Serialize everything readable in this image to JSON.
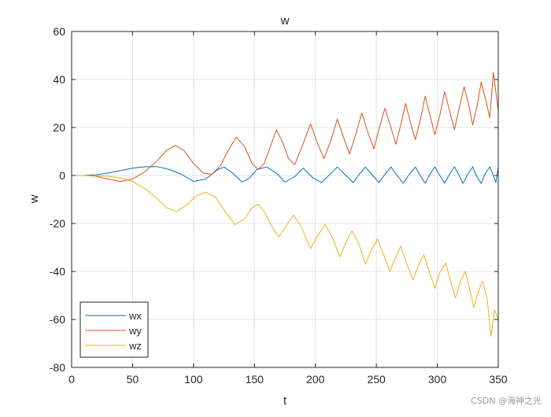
{
  "chart_data": {
    "type": "line",
    "title": "w",
    "xlabel": "t",
    "ylabel": "w",
    "xlim": [
      0,
      350
    ],
    "ylim": [
      -80,
      60
    ],
    "xticks": [
      0,
      50,
      100,
      150,
      200,
      250,
      300,
      350
    ],
    "yticks": [
      -80,
      -60,
      -40,
      -20,
      0,
      20,
      40,
      60
    ],
    "grid": true,
    "legend_position": "bottom-left",
    "series": [
      {
        "name": "wx",
        "color": "#0072BD",
        "points": [
          [
            0,
            0
          ],
          [
            10,
            0
          ],
          [
            20,
            0.3
          ],
          [
            30,
            1.0
          ],
          [
            40,
            2.0
          ],
          [
            50,
            3.0
          ],
          [
            60,
            3.6
          ],
          [
            70,
            3.7
          ],
          [
            80,
            2.5
          ],
          [
            90,
            0.5
          ],
          [
            100,
            -2.5
          ],
          [
            110,
            -1.5
          ],
          [
            120,
            2.5
          ],
          [
            125,
            3.5
          ],
          [
            132,
            1.0
          ],
          [
            140,
            -2.8
          ],
          [
            146,
            -1.0
          ],
          [
            152,
            2.5
          ],
          [
            160,
            3.5
          ],
          [
            168,
            1.0
          ],
          [
            175,
            -2.8
          ],
          [
            183,
            -0.5
          ],
          [
            190,
            3.0
          ],
          [
            198,
            -1.0
          ],
          [
            205,
            -3.0
          ],
          [
            212,
            0.5
          ],
          [
            218,
            3.5
          ],
          [
            225,
            0.0
          ],
          [
            231,
            -3.0
          ],
          [
            236,
            0.5
          ],
          [
            241,
            3.5
          ],
          [
            247,
            0.0
          ],
          [
            252,
            -3.0
          ],
          [
            257,
            0.5
          ],
          [
            262,
            3.5
          ],
          [
            267,
            0.0
          ],
          [
            272,
            -3.2
          ],
          [
            277,
            0.5
          ],
          [
            282,
            3.5
          ],
          [
            286,
            0.0
          ],
          [
            290,
            -3.2
          ],
          [
            294,
            0.5
          ],
          [
            298,
            3.6
          ],
          [
            302,
            0.0
          ],
          [
            306,
            -3.2
          ],
          [
            310,
            0.5
          ],
          [
            314,
            3.6
          ],
          [
            318,
            0.0
          ],
          [
            321,
            -3.3
          ],
          [
            325,
            0.5
          ],
          [
            329,
            3.6
          ],
          [
            332,
            0.0
          ],
          [
            336,
            -3.3
          ],
          [
            339,
            0.5
          ],
          [
            343,
            3.6
          ],
          [
            346,
            0.0
          ],
          [
            348,
            -3.0
          ],
          [
            350,
            3.5
          ]
        ]
      },
      {
        "name": "wy",
        "color": "#D95319",
        "points": [
          [
            0,
            0
          ],
          [
            10,
            0
          ],
          [
            20,
            -0.3
          ],
          [
            30,
            -1.5
          ],
          [
            40,
            -2.5
          ],
          [
            50,
            -1.5
          ],
          [
            60,
            1.5
          ],
          [
            70,
            6.0
          ],
          [
            78,
            10.5
          ],
          [
            85,
            12.5
          ],
          [
            92,
            10.5
          ],
          [
            100,
            5.0
          ],
          [
            108,
            1.0
          ],
          [
            115,
            0.5
          ],
          [
            122,
            4.0
          ],
          [
            128,
            10.0
          ],
          [
            135,
            16.0
          ],
          [
            142,
            12.0
          ],
          [
            148,
            5.0
          ],
          [
            153,
            2.5
          ],
          [
            158,
            5.0
          ],
          [
            163,
            12.0
          ],
          [
            168,
            19.0
          ],
          [
            173,
            14.0
          ],
          [
            178,
            7.0
          ],
          [
            183,
            4.5
          ],
          [
            189,
            12.0
          ],
          [
            196,
            21.5
          ],
          [
            202,
            13.0
          ],
          [
            207,
            7.0
          ],
          [
            213,
            15.0
          ],
          [
            218,
            23.5
          ],
          [
            223,
            16.0
          ],
          [
            228,
            9.0
          ],
          [
            233,
            17.0
          ],
          [
            238,
            26.0
          ],
          [
            243,
            18.0
          ],
          [
            248,
            11.0
          ],
          [
            252,
            19.0
          ],
          [
            257,
            28.0
          ],
          [
            262,
            20.0
          ],
          [
            266,
            13.0
          ],
          [
            270,
            21.0
          ],
          [
            274,
            30.0
          ],
          [
            278,
            22.0
          ],
          [
            282,
            15.0
          ],
          [
            286,
            23.0
          ],
          [
            290,
            33.0
          ],
          [
            294,
            25.0
          ],
          [
            298,
            17.0
          ],
          [
            302,
            25.0
          ],
          [
            306,
            35.0
          ],
          [
            310,
            27.0
          ],
          [
            314,
            19.0
          ],
          [
            318,
            28.0
          ],
          [
            322,
            37.0
          ],
          [
            326,
            29.0
          ],
          [
            329,
            21.0
          ],
          [
            333,
            30.0
          ],
          [
            336,
            39.0
          ],
          [
            340,
            31.0
          ],
          [
            343,
            24.0
          ],
          [
            346,
            43.0
          ],
          [
            350,
            27.0
          ]
        ]
      },
      {
        "name": "wz",
        "color": "#EDB120",
        "points": [
          [
            0,
            0
          ],
          [
            20,
            -0.1
          ],
          [
            30,
            -0.3
          ],
          [
            40,
            -1.0
          ],
          [
            50,
            -2.5
          ],
          [
            60,
            -5.5
          ],
          [
            70,
            -9.5
          ],
          [
            78,
            -13.5
          ],
          [
            86,
            -15.0
          ],
          [
            94,
            -12.5
          ],
          [
            102,
            -8.5
          ],
          [
            110,
            -7.0
          ],
          [
            118,
            -9.0
          ],
          [
            126,
            -15.0
          ],
          [
            134,
            -20.5
          ],
          [
            142,
            -18.0
          ],
          [
            148,
            -13.5
          ],
          [
            153,
            -12.0
          ],
          [
            158,
            -15.0
          ],
          [
            164,
            -21.0
          ],
          [
            170,
            -25.5
          ],
          [
            176,
            -21.0
          ],
          [
            182,
            -16.5
          ],
          [
            188,
            -21.0
          ],
          [
            196,
            -30.5
          ],
          [
            202,
            -25.0
          ],
          [
            208,
            -20.5
          ],
          [
            214,
            -26.0
          ],
          [
            220,
            -34.0
          ],
          [
            225,
            -28.0
          ],
          [
            230,
            -23.0
          ],
          [
            236,
            -29.0
          ],
          [
            241,
            -37.0
          ],
          [
            246,
            -31.0
          ],
          [
            251,
            -26.5
          ],
          [
            256,
            -33.0
          ],
          [
            261,
            -40.0
          ],
          [
            266,
            -34.0
          ],
          [
            270,
            -29.5
          ],
          [
            275,
            -37.0
          ],
          [
            280,
            -43.5
          ],
          [
            285,
            -37.0
          ],
          [
            289,
            -33.0
          ],
          [
            294,
            -41.0
          ],
          [
            298,
            -47.0
          ],
          [
            302,
            -40.5
          ],
          [
            307,
            -36.5
          ],
          [
            311,
            -44.5
          ],
          [
            315,
            -51.0
          ],
          [
            319,
            -44.0
          ],
          [
            323,
            -40.0
          ],
          [
            327,
            -48.5
          ],
          [
            330,
            -55.0
          ],
          [
            334,
            -48.0
          ],
          [
            337,
            -44.0
          ],
          [
            341,
            -52.0
          ],
          [
            344,
            -67.0
          ],
          [
            347,
            -56.0
          ],
          [
            350,
            -60.0
          ]
        ]
      }
    ]
  },
  "watermark": "CSDN @海神之光"
}
